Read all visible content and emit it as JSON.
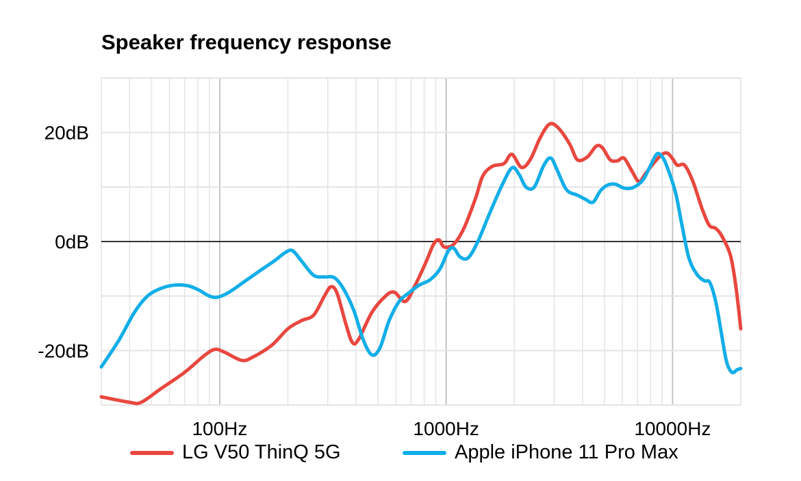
{
  "chart_data": {
    "type": "line",
    "title": "Speaker frequency response",
    "xscale": "log",
    "xlim": [
      30,
      20000
    ],
    "ylim": [
      -30,
      30
    ],
    "x_ticks": [
      {
        "value": 100,
        "label": "100Hz"
      },
      {
        "value": 1000,
        "label": "1000Hz"
      },
      {
        "value": 10000,
        "label": "10000Hz"
      }
    ],
    "y_ticks": [
      {
        "value": 20,
        "label": "20dB"
      },
      {
        "value": 0,
        "label": "0dB"
      },
      {
        "value": -20,
        "label": "-20dB"
      }
    ],
    "zero_line": 0,
    "grid": true,
    "legend_position": "bottom",
    "series": [
      {
        "name": "LG V50 ThinQ 5G",
        "color": "#e8473f",
        "points": [
          [
            30,
            -28.5
          ],
          [
            40,
            -29.5
          ],
          [
            45,
            -29.5
          ],
          [
            55,
            -27
          ],
          [
            70,
            -24
          ],
          [
            85,
            -21
          ],
          [
            95,
            -19.8
          ],
          [
            105,
            -20.3
          ],
          [
            125,
            -21.8
          ],
          [
            140,
            -21.2
          ],
          [
            170,
            -19
          ],
          [
            200,
            -16
          ],
          [
            230,
            -14.5
          ],
          [
            260,
            -13.5
          ],
          [
            290,
            -10
          ],
          [
            310,
            -8.3
          ],
          [
            330,
            -9.5
          ],
          [
            360,
            -15
          ],
          [
            385,
            -18.5
          ],
          [
            410,
            -18
          ],
          [
            470,
            -13
          ],
          [
            540,
            -10
          ],
          [
            590,
            -9.3
          ],
          [
            660,
            -11
          ],
          [
            730,
            -8
          ],
          [
            810,
            -4
          ],
          [
            880,
            -0.5
          ],
          [
            930,
            0.3
          ],
          [
            980,
            -1
          ],
          [
            1080,
            -0.5
          ],
          [
            1200,
            2.5
          ],
          [
            1350,
            8
          ],
          [
            1450,
            12
          ],
          [
            1600,
            13.8
          ],
          [
            1800,
            14.3
          ],
          [
            1950,
            16
          ],
          [
            2150,
            13.6
          ],
          [
            2350,
            15
          ],
          [
            2600,
            19
          ],
          [
            2850,
            21.5
          ],
          [
            3100,
            21
          ],
          [
            3500,
            18
          ],
          [
            3800,
            15
          ],
          [
            4200,
            15.5
          ],
          [
            4600,
            17.5
          ],
          [
            4900,
            17.2
          ],
          [
            5300,
            15
          ],
          [
            5700,
            14.8
          ],
          [
            6100,
            15.3
          ],
          [
            6600,
            13
          ],
          [
            7100,
            11
          ],
          [
            7600,
            12.5
          ],
          [
            8300,
            14.5
          ],
          [
            9000,
            16
          ],
          [
            9500,
            16.2
          ],
          [
            10000,
            15.2
          ],
          [
            10500,
            14
          ],
          [
            11300,
            14
          ],
          [
            12300,
            11
          ],
          [
            13500,
            6
          ],
          [
            14500,
            3
          ],
          [
            15500,
            2.4
          ],
          [
            16500,
            1
          ],
          [
            18000,
            -2.5
          ],
          [
            19000,
            -8
          ],
          [
            20000,
            -16
          ]
        ]
      },
      {
        "name": "Apple iPhone 11 Pro Max",
        "color": "#12aee8",
        "points": [
          [
            30,
            -23
          ],
          [
            36,
            -18
          ],
          [
            42,
            -13
          ],
          [
            48,
            -10
          ],
          [
            55,
            -8.6
          ],
          [
            63,
            -8
          ],
          [
            72,
            -8.1
          ],
          [
            80,
            -8.8
          ],
          [
            90,
            -10
          ],
          [
            98,
            -10.2
          ],
          [
            110,
            -9.3
          ],
          [
            130,
            -7.2
          ],
          [
            150,
            -5.4
          ],
          [
            175,
            -3.5
          ],
          [
            195,
            -2
          ],
          [
            210,
            -1.7
          ],
          [
            230,
            -3.6
          ],
          [
            260,
            -6.2
          ],
          [
            290,
            -6.5
          ],
          [
            320,
            -6.6
          ],
          [
            350,
            -8.5
          ],
          [
            390,
            -12.5
          ],
          [
            430,
            -18
          ],
          [
            470,
            -20.8
          ],
          [
            510,
            -19.5
          ],
          [
            560,
            -14.5
          ],
          [
            620,
            -11
          ],
          [
            680,
            -9.5
          ],
          [
            760,
            -8
          ],
          [
            850,
            -7
          ],
          [
            940,
            -5
          ],
          [
            1020,
            -1.8
          ],
          [
            1080,
            -1.2
          ],
          [
            1150,
            -2.8
          ],
          [
            1250,
            -3
          ],
          [
            1380,
            0
          ],
          [
            1550,
            5
          ],
          [
            1750,
            10
          ],
          [
            1950,
            13.5
          ],
          [
            2100,
            12.3
          ],
          [
            2250,
            10
          ],
          [
            2450,
            10
          ],
          [
            2700,
            14
          ],
          [
            2900,
            15.3
          ],
          [
            3100,
            13
          ],
          [
            3400,
            9.5
          ],
          [
            3800,
            8.5
          ],
          [
            4100,
            7.8
          ],
          [
            4450,
            7.2
          ],
          [
            4800,
            9.3
          ],
          [
            5200,
            10.4
          ],
          [
            5600,
            10.5
          ],
          [
            6100,
            9.8
          ],
          [
            6700,
            9.9
          ],
          [
            7400,
            11.3
          ],
          [
            8000,
            14
          ],
          [
            8500,
            16
          ],
          [
            8900,
            15.8
          ],
          [
            9400,
            14
          ],
          [
            10300,
            9
          ],
          [
            11000,
            3
          ],
          [
            11800,
            -3
          ],
          [
            12800,
            -6
          ],
          [
            13800,
            -7.2
          ],
          [
            14600,
            -7.5
          ],
          [
            15500,
            -11
          ],
          [
            16300,
            -16
          ],
          [
            17300,
            -22
          ],
          [
            18300,
            -24
          ],
          [
            19300,
            -23.5
          ],
          [
            20000,
            -23.3
          ]
        ]
      }
    ]
  }
}
